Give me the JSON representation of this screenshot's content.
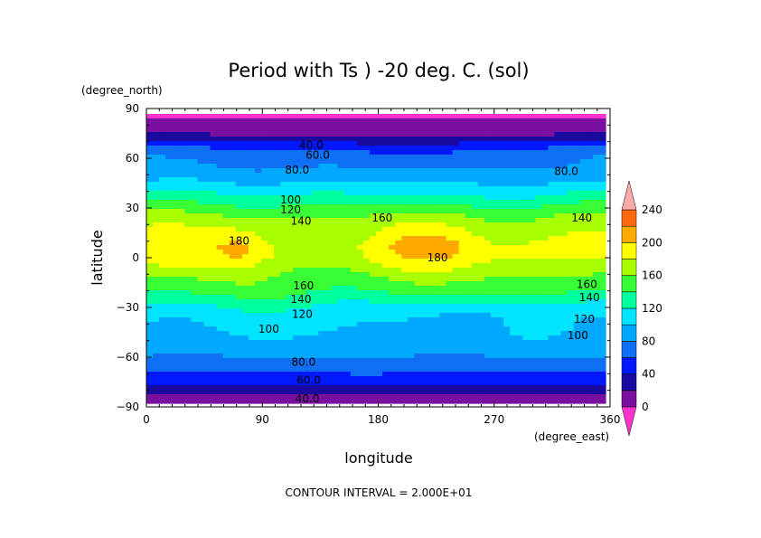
{
  "chart_data": {
    "type": "contour",
    "title": "Period with Ts ) -20 deg. C. (sol)",
    "xlabel": "longitude",
    "ylabel": "latitude",
    "xunit": "(degree_east)",
    "yunit": "(degree_north)",
    "xlim": [
      0,
      360
    ],
    "ylim": [
      -90,
      90
    ],
    "xticks": [
      0,
      90,
      180,
      270,
      360
    ],
    "yticks": [
      90,
      60,
      30,
      0,
      -30,
      -60,
      -90
    ],
    "contour_interval_text": "CONTOUR INTERVAL = 2.000E+01",
    "colorbar": {
      "tick_labels": [
        "0",
        "40",
        "80",
        "120",
        "160",
        "200",
        "240"
      ],
      "levels": [
        -20,
        0,
        20,
        40,
        60,
        80,
        100,
        120,
        140,
        160,
        180,
        200,
        220,
        240,
        260
      ],
      "colors": [
        "#ff33cc",
        "#7b0fa0",
        "#1a0aa0",
        "#0018ff",
        "#0f6ff5",
        "#00a8ff",
        "#00e4ff",
        "#00ff9d",
        "#38ff35",
        "#a8ff00",
        "#ffff00",
        "#ffaa00",
        "#ff6a10",
        "#ff5a5a",
        "#ffaaaa"
      ]
    },
    "latitude_profile": {
      "lat": [
        -90,
        -84,
        -78,
        -72,
        -66,
        -60,
        -54,
        -48,
        -42,
        -36,
        -30,
        -24,
        -18,
        -12,
        -6,
        0,
        6,
        12,
        18,
        24,
        30,
        36,
        42,
        48,
        54,
        60,
        66,
        72,
        78,
        84,
        90
      ],
      "value": [
        0,
        10,
        32,
        55,
        68,
        80,
        90,
        97,
        103,
        108,
        118,
        135,
        150,
        160,
        172,
        182,
        184,
        180,
        172,
        163,
        145,
        125,
        110,
        95,
        83,
        70,
        55,
        25,
        4,
        -1,
        -1
      ]
    },
    "contour_labels": [
      {
        "text": "40.0",
        "lon": 128,
        "lat": 68
      },
      {
        "text": "60.0",
        "lon": 133,
        "lat": 62
      },
      {
        "text": "80.0",
        "lon": 117,
        "lat": 53
      },
      {
        "text": "80.0",
        "lon": 326,
        "lat": 52
      },
      {
        "text": "100",
        "lon": 112,
        "lat": 35
      },
      {
        "text": "120",
        "lon": 112,
        "lat": 29
      },
      {
        "text": "140",
        "lon": 120,
        "lat": 22
      },
      {
        "text": "160",
        "lon": 183,
        "lat": 24
      },
      {
        "text": "140",
        "lon": 338,
        "lat": 24
      },
      {
        "text": "180",
        "lon": 72,
        "lat": 10
      },
      {
        "text": "180",
        "lon": 226,
        "lat": 0
      },
      {
        "text": "160",
        "lon": 122,
        "lat": -17
      },
      {
        "text": "140",
        "lon": 120,
        "lat": -25
      },
      {
        "text": "120",
        "lon": 121,
        "lat": -34
      },
      {
        "text": "100",
        "lon": 95,
        "lat": -43
      },
      {
        "text": "160",
        "lon": 342,
        "lat": -16
      },
      {
        "text": "140",
        "lon": 344,
        "lat": -24
      },
      {
        "text": "120",
        "lon": 340,
        "lat": -37
      },
      {
        "text": "100",
        "lon": 335,
        "lat": -47
      },
      {
        "text": "80.0",
        "lon": 122,
        "lat": -63
      },
      {
        "text": "60.0",
        "lon": 126,
        "lat": -74
      },
      {
        "text": "40.0",
        "lon": 125,
        "lat": -85
      }
    ]
  }
}
